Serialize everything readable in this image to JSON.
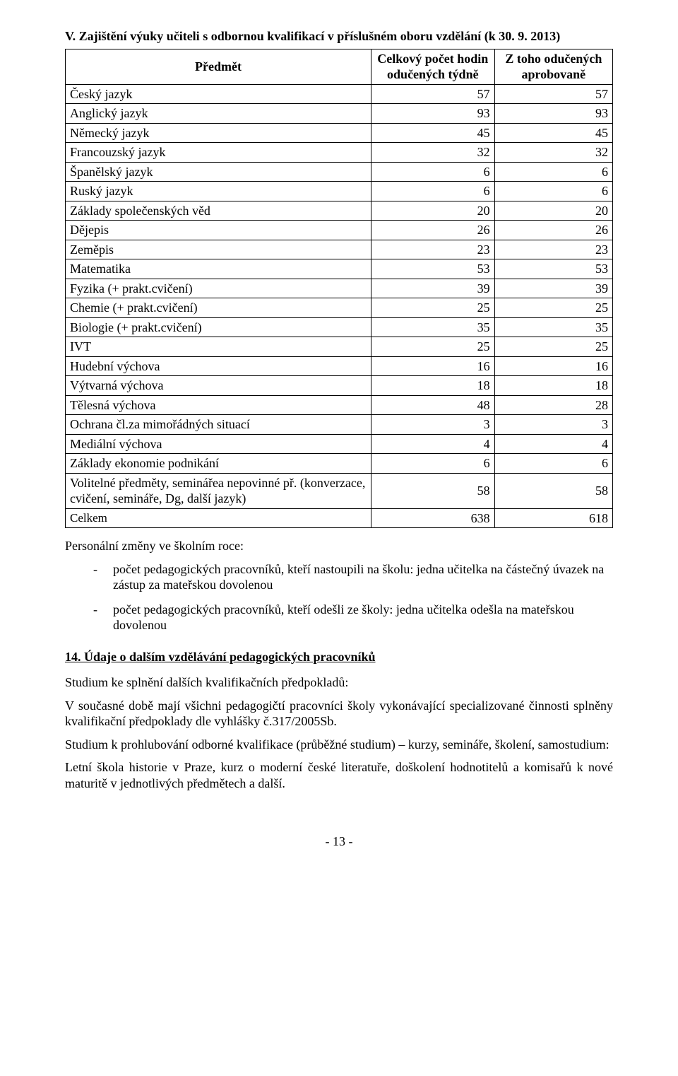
{
  "heading": "V. Zajištění výuky učiteli s odbornou kvalifikací v příslušném oboru vzdělání (k 30. 9. 2013)",
  "table": {
    "header": {
      "subject": "Předmět",
      "hours": "Celkový počet hodin odučených týdně",
      "appro": "Z toho odučených aprobovaně"
    },
    "rows": [
      {
        "subject": "Český jazyk",
        "hours": "57",
        "appro": "57"
      },
      {
        "subject": "Anglický jazyk",
        "hours": "93",
        "appro": "93"
      },
      {
        "subject": "Německý jazyk",
        "hours": "45",
        "appro": "45"
      },
      {
        "subject": "Francouzský jazyk",
        "hours": "32",
        "appro": "32"
      },
      {
        "subject": "Španělský jazyk",
        "hours": "6",
        "appro": "6"
      },
      {
        "subject": "Ruský jazyk",
        "hours": "6",
        "appro": "6"
      },
      {
        "subject": "Základy společenských věd",
        "hours": "20",
        "appro": "20"
      },
      {
        "subject": "Dějepis",
        "hours": "26",
        "appro": "26"
      },
      {
        "subject": "Zeměpis",
        "hours": "23",
        "appro": "23"
      },
      {
        "subject": "Matematika",
        "hours": "53",
        "appro": "53"
      },
      {
        "subject": "Fyzika (+ prakt.cvičení)",
        "hours": "39",
        "appro": "39"
      },
      {
        "subject": "Chemie (+ prakt.cvičení)",
        "hours": "25",
        "appro": "25"
      },
      {
        "subject": "Biologie (+ prakt.cvičení)",
        "hours": "35",
        "appro": "35"
      },
      {
        "subject": "IVT",
        "hours": "25",
        "appro": "25"
      },
      {
        "subject": "Hudební výchova",
        "hours": "16",
        "appro": "16"
      },
      {
        "subject": "Výtvarná výchova",
        "hours": "18",
        "appro": "18"
      },
      {
        "subject": "Tělesná výchova",
        "hours": "48",
        "appro": "28"
      },
      {
        "subject": "Ochrana čl.za mimořádných situací",
        "hours": "3",
        "appro": "3"
      },
      {
        "subject": "Mediální výchova",
        "hours": "4",
        "appro": "4"
      },
      {
        "subject": "Základy ekonomie podnikání",
        "hours": "6",
        "appro": "6"
      },
      {
        "subject": "Volitelné předměty, seminářea nepovinné př. (konverzace, cvičení, semináře, Dg, další jazyk)",
        "hours": "58",
        "appro": "58"
      }
    ],
    "total": {
      "subject": "Celkem",
      "hours": "638",
      "appro": "618"
    }
  },
  "changes_intro": "Personální změny ve školním roce:",
  "bullets": {
    "b1": "počet pedagogických pracovníků, kteří nastoupili na školu: jedna učitelka na částečný úvazek na zástup za mateřskou dovolenou",
    "b2": "počet pedagogických pracovníků, kteří odešli ze školy: jedna učitelka odešla na mateřskou dovolenou"
  },
  "section14_title": "14. Údaje o dalším vzdělávání pedagogických pracovníků",
  "section14": {
    "p1": "Studium ke splnění dalších kvalifikačních předpokladů:",
    "p2": "V současné době mají všichni pedagogičtí pracovníci školy vykonávající specializované činnosti splněny kvalifikační předpoklady dle vyhlášky č.317/2005Sb.",
    "p3": "Studium k prohlubování odborné kvalifikace (průběžné studium) – kurzy, semináře, školení, samostudium:",
    "p4": "Letní škola historie v Praze, kurz o moderní české literatuře, doškolení hodnotitelů a komisařů k nové maturitě v jednotlivých předmětech a další."
  },
  "page_number": "- 13 -"
}
